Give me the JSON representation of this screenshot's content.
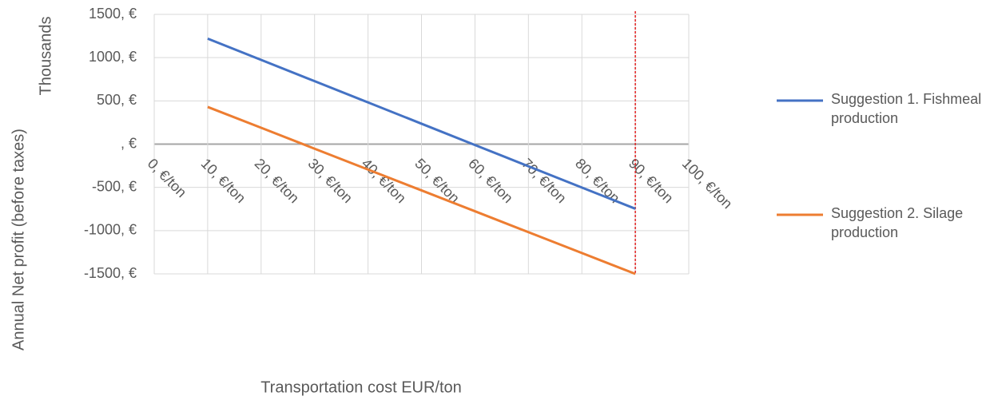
{
  "chart_data": {
    "type": "line",
    "y_label": "Annual Net profit (before taxes)",
    "y_units_label": "Thousands",
    "x_label": "Transportation cost EUR/ton",
    "x": [
      10,
      20,
      30,
      40,
      50,
      60,
      70,
      80,
      90
    ],
    "series": [
      {
        "name": "Suggestion 1. Fishmeal production",
        "color": "#4472c4",
        "values": [
          1220,
          974,
          728,
          482,
          236,
          -10,
          -256,
          -502,
          -747
        ]
      },
      {
        "name": "Suggestion 2. Silage production",
        "color": "#ed7d31",
        "values": [
          430,
          189,
          -53,
          -294,
          -535,
          -776,
          -1018,
          -1259,
          -1500
        ]
      }
    ],
    "xlim": [
      0,
      100
    ],
    "xticks": [
      {
        "value": 0,
        "label": "0, €/ton"
      },
      {
        "value": 10,
        "label": "10, €/ton"
      },
      {
        "value": 20,
        "label": "20, €/ton"
      },
      {
        "value": 30,
        "label": "30, €/ton"
      },
      {
        "value": 40,
        "label": "40, €/ton"
      },
      {
        "value": 50,
        "label": "50, €/ton"
      },
      {
        "value": 60,
        "label": "60, €/ton"
      },
      {
        "value": 70,
        "label": "70, €/ton"
      },
      {
        "value": 80,
        "label": "80, €/ton"
      },
      {
        "value": 90,
        "label": "90, €/ton"
      },
      {
        "value": 100,
        "label": "100, €/ton"
      }
    ],
    "ylim": [
      -1500,
      1500
    ],
    "yticks": [
      {
        "value": -1500,
        "label": "-1500, €"
      },
      {
        "value": -1000,
        "label": "-1000, €"
      },
      {
        "value": -500,
        "label": "-500, €"
      },
      {
        "value": 0,
        "label": ", €"
      },
      {
        "value": 500,
        "label": "500, €"
      },
      {
        "value": 1000,
        "label": "1000, €"
      },
      {
        "value": 1500,
        "label": "1500, €"
      }
    ],
    "grid": true,
    "reference_line": {
      "x": 90,
      "color": "#e02020"
    },
    "legend": "right"
  }
}
